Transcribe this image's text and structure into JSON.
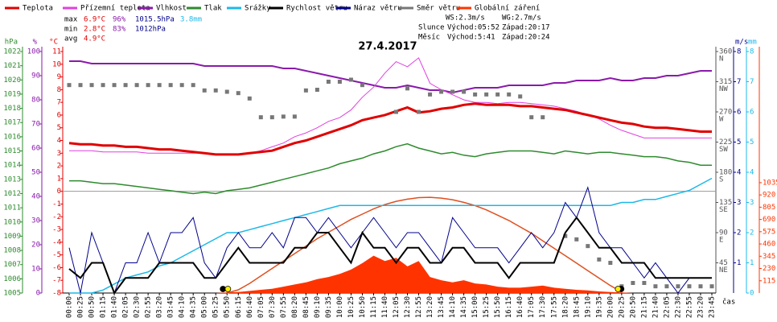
{
  "chart_data": {
    "type": "line",
    "title": "27.4.2017",
    "x_label": "čas",
    "categories": [
      "00:00",
      "00:25",
      "00:50",
      "01:15",
      "01:40",
      "02:05",
      "02:30",
      "02:55",
      "03:20",
      "03:45",
      "04:10",
      "04:35",
      "05:00",
      "05:25",
      "05:50",
      "06:15",
      "06:40",
      "07:05",
      "07:30",
      "07:55",
      "08:20",
      "08:45",
      "09:10",
      "09:35",
      "10:00",
      "10:25",
      "10:50",
      "11:15",
      "11:40",
      "12:05",
      "12:30",
      "12:55",
      "13:20",
      "13:45",
      "14:10",
      "14:35",
      "15:00",
      "15:25",
      "15:50",
      "16:15",
      "16:40",
      "17:05",
      "17:30",
      "17:55",
      "18:20",
      "18:45",
      "19:10",
      "19:35",
      "20:00",
      "20:25",
      "20:50",
      "21:15",
      "21:40",
      "22:05",
      "22:30",
      "22:55",
      "23:20",
      "23:45"
    ],
    "axes": {
      "pressure": {
        "name": "hPa",
        "color": "#2e8b2e",
        "side": "left",
        "lim": [
          1005,
          1022
        ],
        "ticks": [
          1005,
          1006,
          1007,
          1008,
          1009,
          1010,
          1011,
          1012,
          1013,
          1014,
          1015,
          1016,
          1017,
          1018,
          1019,
          1020,
          1021,
          1022
        ]
      },
      "humidity": {
        "name": "%",
        "color": "#8a1aaa",
        "side": "left",
        "lim": [
          0,
          100
        ],
        "ticks": [
          0,
          10,
          20,
          30,
          40,
          50,
          60,
          70,
          80,
          90,
          100
        ]
      },
      "temp": {
        "name": "°C",
        "color": "#e00000",
        "side": "left",
        "lim": [
          -8,
          11
        ],
        "ticks": [
          -8,
          -7,
          -6,
          -5,
          -4,
          -3,
          -2,
          -1,
          0,
          1,
          2,
          3,
          4,
          5,
          6,
          7,
          8,
          9,
          10,
          11
        ]
      },
      "direction": {
        "color": "#555555",
        "side": "right",
        "lim": [
          0,
          360
        ],
        "ticks": [
          45,
          90,
          135,
          180,
          225,
          270,
          315,
          360
        ],
        "tick_dirs": [
          "NE",
          "E",
          "SE",
          "S",
          "SW",
          "W",
          "NW",
          "N"
        ]
      },
      "wind": {
        "name": "m/s",
        "color": "#00008b",
        "side": "right",
        "lim": [
          0,
          8
        ],
        "ticks": [
          1,
          2,
          3,
          4,
          5,
          6,
          7,
          8
        ]
      },
      "rain": {
        "name": "mm",
        "color": "#1cb8e8",
        "side": "right",
        "lim": [
          0,
          8
        ],
        "ticks": [
          0,
          1,
          2,
          3,
          4,
          5,
          6,
          7,
          8
        ]
      },
      "radiation": {
        "color": "#ff3300",
        "side": "right",
        "lim": [
          0,
          2265
        ],
        "ticks": [
          115,
          230,
          345,
          460,
          575,
          690,
          805,
          920,
          1035
        ]
      }
    },
    "series": [
      {
        "name": "Teplota",
        "color": "#e00000",
        "axis": "temp",
        "width": 3,
        "values": [
          3.8,
          3.7,
          3.7,
          3.6,
          3.6,
          3.5,
          3.5,
          3.4,
          3.3,
          3.3,
          3.2,
          3.1,
          3.0,
          2.9,
          2.9,
          2.9,
          3.0,
          3.1,
          3.2,
          3.5,
          3.8,
          4.0,
          4.3,
          4.6,
          4.9,
          5.2,
          5.6,
          5.8,
          6.0,
          6.3,
          6.6,
          6.2,
          6.3,
          6.5,
          6.6,
          6.8,
          6.9,
          6.8,
          6.8,
          6.8,
          6.7,
          6.7,
          6.6,
          6.5,
          6.4,
          6.2,
          6.0,
          5.8,
          5.6,
          5.4,
          5.3,
          5.1,
          5.0,
          5.0,
          4.9,
          4.8,
          4.7,
          4.7
        ]
      },
      {
        "name": "Přízemní teplota",
        "color": "#e040e0",
        "axis": "temp",
        "width": 1,
        "values": [
          3.2,
          3.2,
          3.2,
          3.1,
          3.1,
          3.1,
          3.1,
          3.0,
          3.0,
          3.0,
          3.0,
          3.0,
          3.0,
          2.9,
          2.9,
          2.9,
          3.0,
          3.2,
          3.5,
          3.8,
          4.3,
          4.6,
          5.0,
          5.5,
          5.8,
          6.4,
          7.4,
          8.2,
          9.3,
          10.2,
          9.8,
          10.5,
          8.5,
          8.0,
          7.6,
          7.2,
          7.0,
          7.0,
          6.9,
          7.0,
          7.0,
          6.9,
          6.8,
          6.7,
          6.5,
          6.3,
          6.0,
          5.7,
          5.2,
          4.8,
          4.5,
          4.2,
          4.2,
          4.2,
          4.2,
          4.2,
          4.2,
          4.2
        ]
      },
      {
        "name": "Vlhkost",
        "color": "#8a1aaa",
        "axis": "humidity",
        "width": 2,
        "values": [
          96,
          96,
          95,
          95,
          95,
          95,
          95,
          95,
          95,
          95,
          95,
          95,
          94,
          94,
          94,
          94,
          94,
          94,
          94,
          93,
          93,
          92,
          91,
          90,
          89,
          88,
          87,
          86,
          85,
          85,
          86,
          85,
          84,
          84,
          83,
          84,
          85,
          85,
          85,
          86,
          86,
          86,
          86,
          87,
          87,
          88,
          88,
          88,
          89,
          88,
          88,
          89,
          89,
          90,
          90,
          91,
          92,
          92
        ]
      },
      {
        "name": "Tlak",
        "color": "#2e8b2e",
        "axis": "pressure",
        "width": 1.5,
        "values": [
          1012.9,
          1012.9,
          1012.8,
          1012.7,
          1012.7,
          1012.6,
          1012.5,
          1012.4,
          1012.3,
          1012.2,
          1012.1,
          1012.0,
          1012.1,
          1012.0,
          1012.2,
          1012.3,
          1012.4,
          1012.6,
          1012.8,
          1013.0,
          1013.2,
          1013.4,
          1013.6,
          1013.8,
          1014.1,
          1014.3,
          1014.5,
          1014.8,
          1015.0,
          1015.3,
          1015.5,
          1015.2,
          1015.0,
          1014.8,
          1014.9,
          1014.7,
          1014.6,
          1014.8,
          1014.9,
          1015.0,
          1015.0,
          1015.0,
          1014.9,
          1014.8,
          1015.0,
          1014.9,
          1014.8,
          1014.9,
          1014.9,
          1014.8,
          1014.7,
          1014.6,
          1014.6,
          1014.5,
          1014.3,
          1014.2,
          1014.0,
          1014.0
        ]
      },
      {
        "name": "Srážky",
        "color": "#1cb8e8",
        "axis": "rain",
        "width": 1.5,
        "values": [
          0,
          0,
          0,
          0.1,
          0.3,
          0.5,
          0.6,
          0.7,
          0.9,
          1.0,
          1.2,
          1.4,
          1.6,
          1.8,
          2.0,
          2.0,
          2.1,
          2.2,
          2.3,
          2.4,
          2.5,
          2.6,
          2.7,
          2.8,
          2.9,
          2.9,
          2.9,
          2.9,
          2.9,
          2.9,
          2.9,
          2.9,
          2.9,
          2.9,
          2.9,
          2.9,
          2.9,
          2.9,
          2.9,
          2.9,
          2.9,
          2.9,
          2.9,
          2.9,
          2.9,
          2.9,
          2.9,
          2.9,
          2.9,
          3.0,
          3.0,
          3.1,
          3.1,
          3.2,
          3.3,
          3.4,
          3.6,
          3.8
        ]
      },
      {
        "name": "Rychlost větru",
        "color": "#000000",
        "axis": "wind",
        "width": 2,
        "values": [
          0.8,
          0.5,
          1.0,
          1.0,
          0,
          0.5,
          0.5,
          0.5,
          1.0,
          1.0,
          1.0,
          1.0,
          0.5,
          0.5,
          1.0,
          1.5,
          1.0,
          1.0,
          1.0,
          1.0,
          1.5,
          1.5,
          2.0,
          2.0,
          1.5,
          1.0,
          2.0,
          1.5,
          1.5,
          1.0,
          1.5,
          1.5,
          1.0,
          1.0,
          1.5,
          1.5,
          1.0,
          1.0,
          1.0,
          0.5,
          1.0,
          1.0,
          1.0,
          1.0,
          2.0,
          2.5,
          2.0,
          1.5,
          1.5,
          1.0,
          1.0,
          1.0,
          0.5,
          0.5,
          0.5,
          0.5,
          0.5,
          0.5
        ]
      },
      {
        "name": "Náraz větru",
        "color": "#00008b",
        "axis": "wind",
        "width": 1,
        "values": [
          1.5,
          0,
          2.0,
          1.0,
          0,
          1.0,
          1.0,
          2.0,
          1.0,
          2.0,
          2.0,
          2.5,
          1.0,
          0.5,
          1.5,
          2.0,
          1.5,
          1.5,
          2.0,
          1.5,
          2.5,
          2.5,
          2.0,
          2.5,
          2.0,
          1.5,
          2.0,
          2.5,
          2.0,
          1.5,
          2.0,
          2.0,
          1.5,
          1.0,
          2.5,
          2.0,
          1.5,
          1.5,
          1.5,
          1.0,
          1.5,
          2.0,
          1.5,
          2.0,
          3.0,
          2.5,
          3.5,
          2.0,
          1.5,
          1.5,
          1.0,
          0.5,
          1.0,
          0.5,
          0,
          0.5,
          0.5,
          0.5
        ]
      },
      {
        "name": "Směr větru",
        "color": "#777777",
        "axis": "direction",
        "marker": "square",
        "values": [
          310,
          310,
          310,
          310,
          310,
          310,
          310,
          310,
          310,
          310,
          310,
          310,
          302,
          302,
          300,
          298,
          290,
          262,
          262,
          263,
          263,
          302,
          303,
          315,
          315,
          318,
          310,
          null,
          null,
          270,
          305,
          270,
          296,
          300,
          300,
          300,
          296,
          296,
          296,
          296,
          293,
          262,
          262,
          null,
          85,
          80,
          70,
          50,
          45,
          10,
          15,
          15,
          10,
          10,
          10,
          10,
          10,
          10
        ]
      },
      {
        "name": "Globální záření",
        "color": "#ff3300",
        "axis": "radiation",
        "fill": true,
        "values": [
          0,
          0,
          0,
          0,
          0,
          0,
          0,
          0,
          0,
          0,
          0,
          0,
          0,
          0,
          5,
          10,
          20,
          30,
          40,
          60,
          80,
          100,
          130,
          150,
          180,
          220,
          280,
          350,
          300,
          330,
          250,
          300,
          150,
          120,
          100,
          120,
          90,
          80,
          60,
          50,
          50,
          60,
          70,
          50,
          40,
          30,
          25,
          15,
          10,
          5,
          0,
          0,
          0,
          0,
          0,
          0,
          0,
          0
        ],
        "max_values": [
          null,
          null,
          null,
          null,
          null,
          null,
          null,
          null,
          null,
          null,
          null,
          null,
          null,
          null,
          0,
          30,
          90,
          160,
          230,
          300,
          370,
          440,
          510,
          570,
          630,
          690,
          740,
          790,
          830,
          860,
          880,
          895,
          898,
          890,
          875,
          850,
          820,
          780,
          730,
          680,
          620,
          560,
          490,
          420,
          350,
          280,
          210,
          140,
          70,
          10,
          null,
          null,
          null,
          null,
          null,
          null,
          null,
          null
        ],
        "max_color": "#e05020"
      }
    ],
    "stats": {
      "colors": [
        "#e00000",
        "#8a1aaa",
        "#00008b",
        "#1cb8e8"
      ],
      "rows": [
        {
          "label": "max",
          "values": [
            "6.9°C",
            "96%",
            "1015.5hPa",
            "3.8mm"
          ]
        },
        {
          "label": "min",
          "values": [
            "2.8°C",
            "83%",
            "1012hPa"
          ]
        },
        {
          "label": "avg",
          "values": [
            "4.9°C"
          ]
        }
      ]
    },
    "wind_summary": [
      "WS:2.3m/s",
      "WG:2.7m/s"
    ],
    "astro": [
      {
        "label": "Slunce",
        "rise": "Východ:05:52",
        "set": "Západ:20:17",
        "color": "#ffee00"
      },
      {
        "label": "Měsíc",
        "rise": "Východ:5:41",
        "set": "Západ:20:24",
        "color": "#000000"
      }
    ]
  }
}
